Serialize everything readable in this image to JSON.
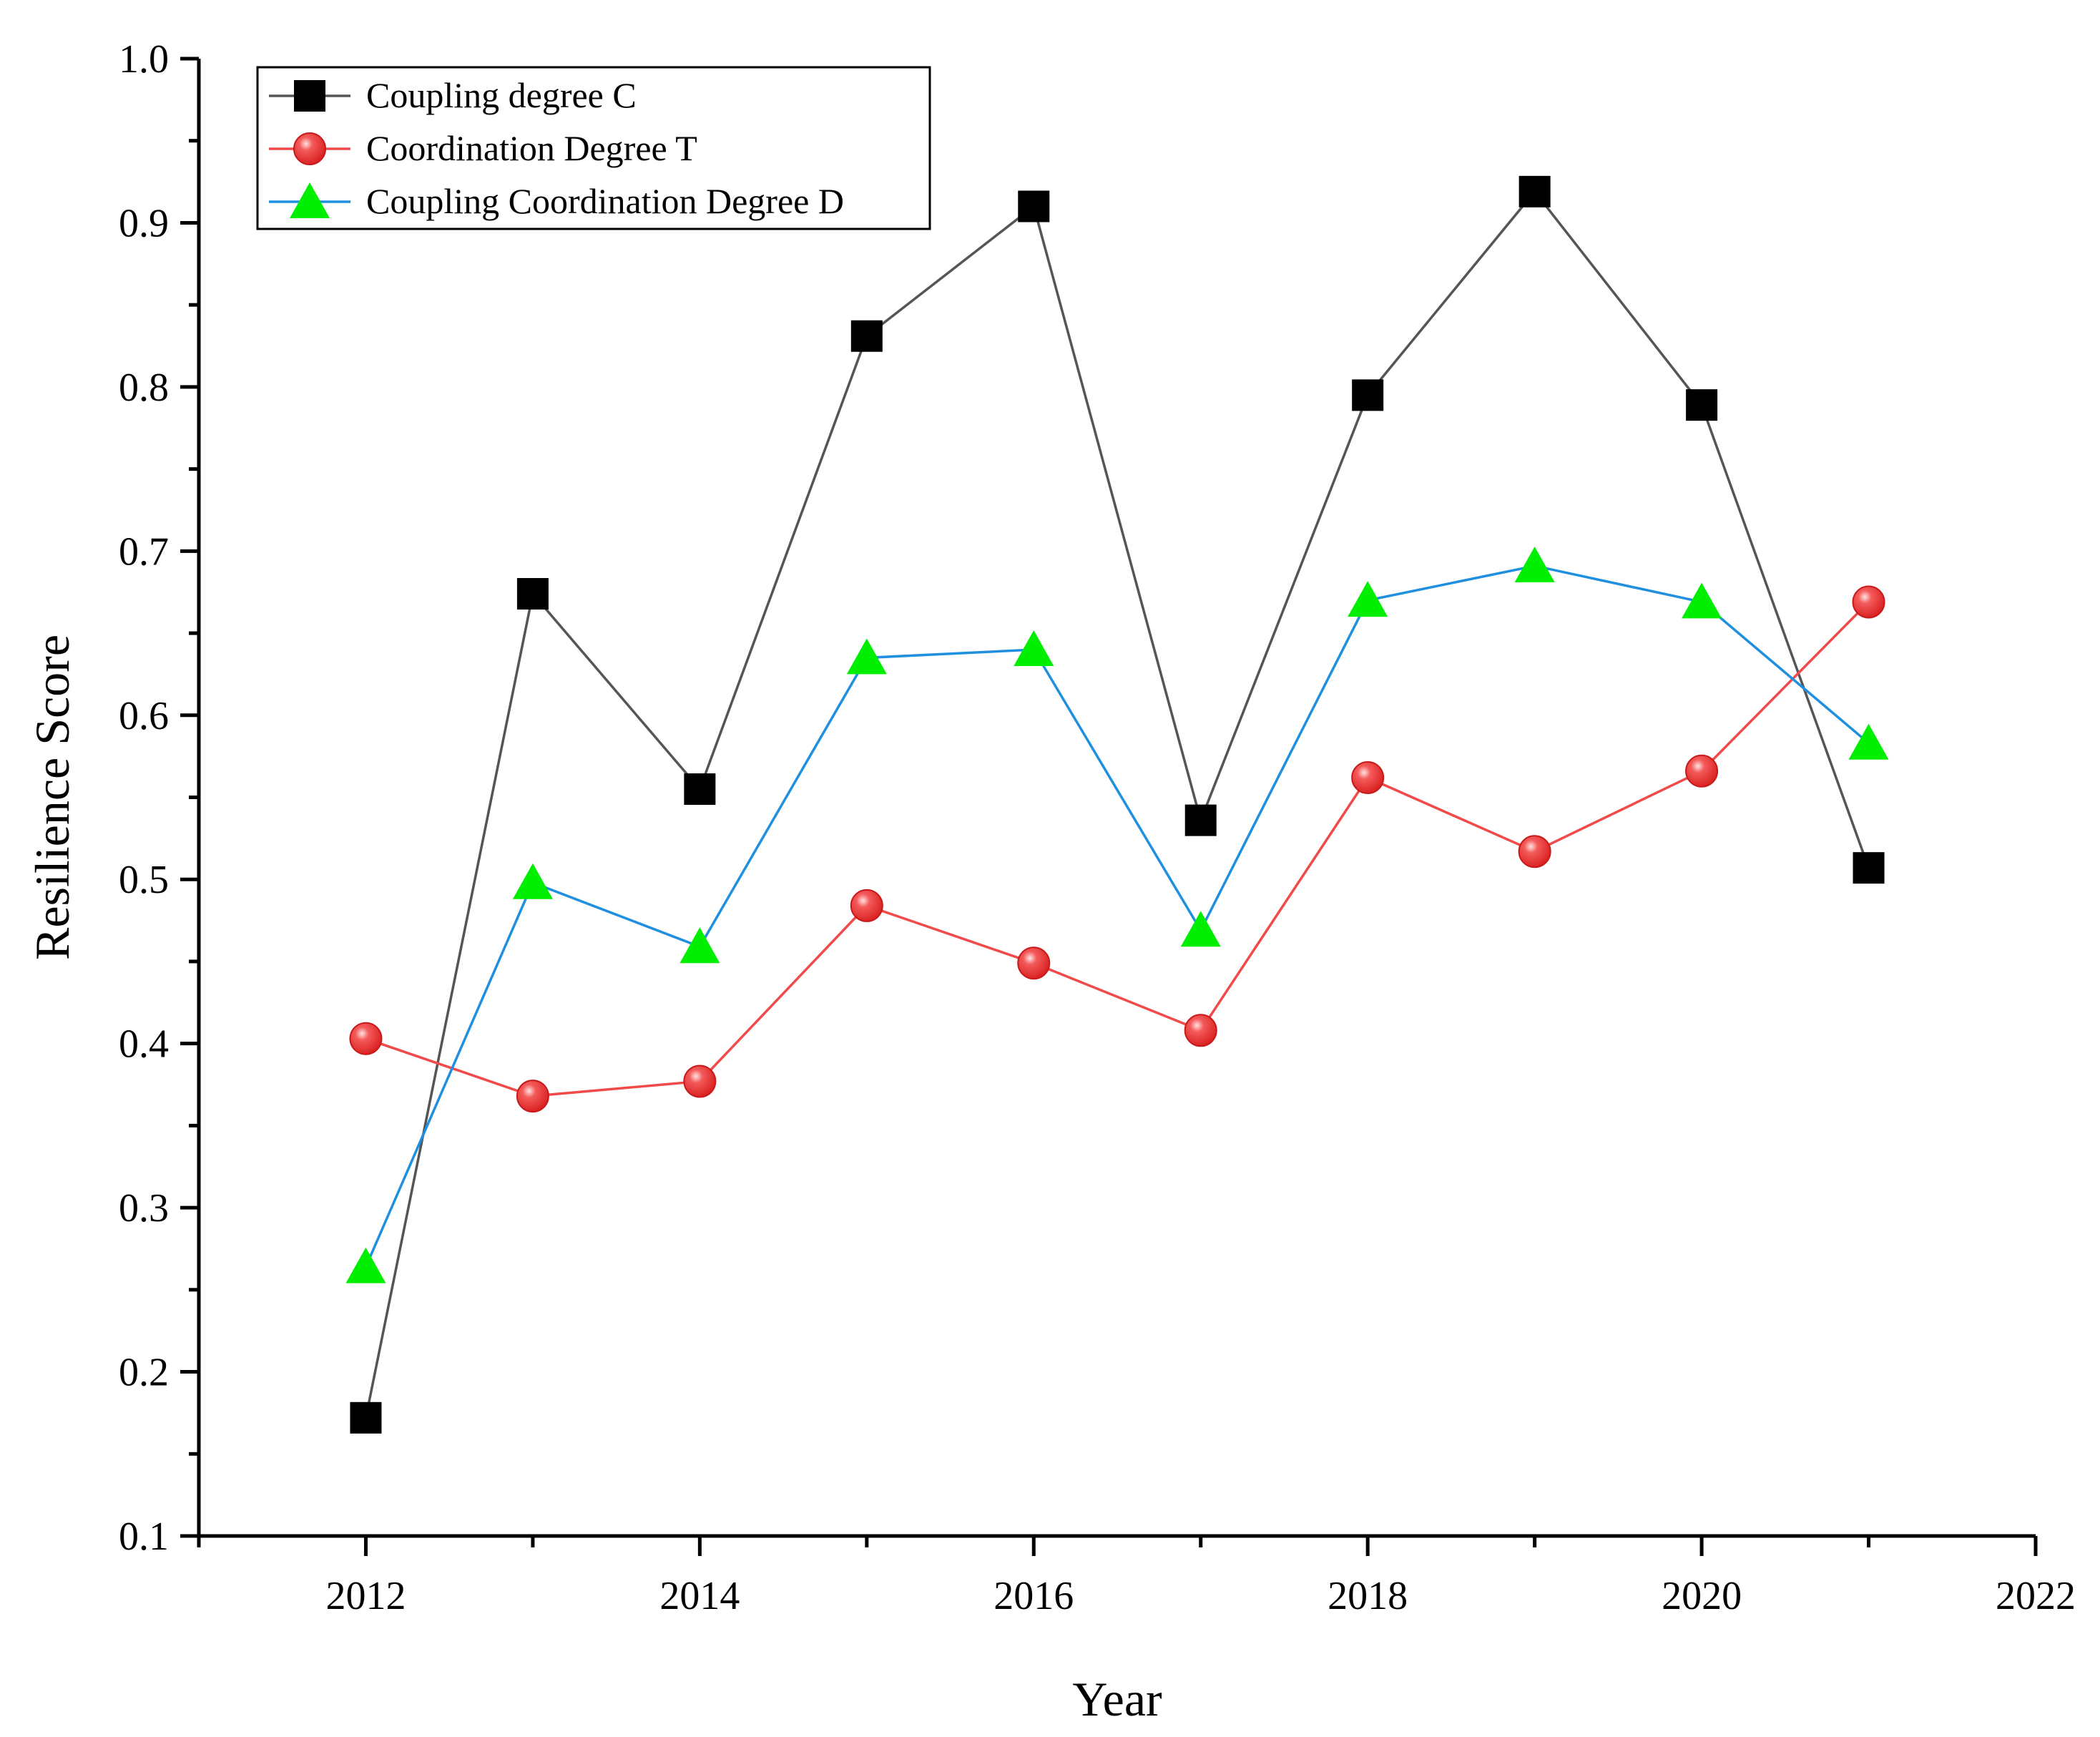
{
  "chart_data": {
    "type": "line",
    "title": "",
    "xlabel": "Year",
    "ylabel": "Resilience Score",
    "xlim": [
      2011,
      2022
    ],
    "ylim": [
      0.1,
      1.0
    ],
    "x_ticks": [
      2012,
      2014,
      2016,
      2018,
      2020,
      2022
    ],
    "y_ticks": [
      0.1,
      0.2,
      0.3,
      0.4,
      0.5,
      0.6,
      0.7,
      0.8,
      0.9,
      1.0
    ],
    "legend_position": "top-left",
    "grid": false,
    "x": [
      2012,
      2013,
      2014,
      2015,
      2016,
      2017,
      2018,
      2019,
      2020,
      2021
    ],
    "series": [
      {
        "name": "Coupling degree C",
        "marker": "square",
        "line_color": "#555555",
        "marker_color": "#000000",
        "values": [
          0.172,
          0.674,
          0.555,
          0.831,
          0.91,
          0.536,
          0.795,
          0.919,
          0.789,
          0.507
        ]
      },
      {
        "name": "Coordination Degree T",
        "marker": "circle",
        "line_color": "#f04a4a",
        "marker_color": "#f25050",
        "values": [
          0.403,
          0.368,
          0.377,
          0.484,
          0.449,
          0.408,
          0.562,
          0.517,
          0.566,
          0.669
        ]
      },
      {
        "name": "Coupling Coordination Degree D",
        "marker": "triangle",
        "line_color": "#1f8fe0",
        "marker_color": "#00ee00",
        "values": [
          0.264,
          0.498,
          0.459,
          0.635,
          0.64,
          0.469,
          0.67,
          0.691,
          0.669,
          0.583
        ]
      }
    ]
  }
}
